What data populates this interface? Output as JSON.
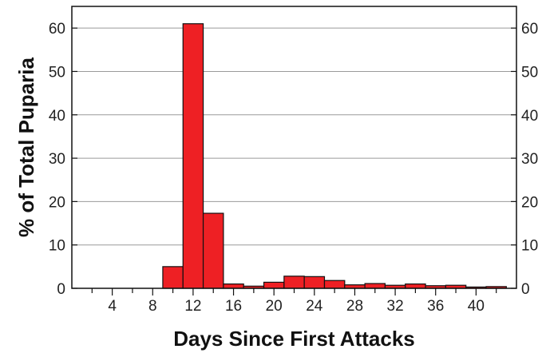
{
  "chart_data": {
    "type": "bar",
    "title": "",
    "xlabel": "Days Since First Attacks",
    "ylabel": "% of Total Puparia",
    "xlim": [
      0,
      44
    ],
    "ylim": [
      0,
      65
    ],
    "grid": true,
    "bar_width_days": 2,
    "bar_color": "#ee2024",
    "x_ticks": [
      4,
      8,
      12,
      16,
      20,
      24,
      28,
      32,
      36,
      40
    ],
    "x_tick_labels": [
      "4",
      "8",
      "12",
      "16",
      "20",
      "24",
      "28",
      "32",
      "36",
      "40"
    ],
    "y_ticks": [
      0,
      10,
      20,
      30,
      40,
      50,
      60
    ],
    "y_tick_labels": [
      "0",
      "10",
      "20",
      "30",
      "40",
      "50",
      "60"
    ],
    "bars": [
      {
        "x": 10,
        "value": 5.0
      },
      {
        "x": 12,
        "value": 61.0
      },
      {
        "x": 14,
        "value": 17.3
      },
      {
        "x": 16,
        "value": 1.0
      },
      {
        "x": 18,
        "value": 0.5
      },
      {
        "x": 20,
        "value": 1.4
      },
      {
        "x": 22,
        "value": 2.8
      },
      {
        "x": 24,
        "value": 2.7
      },
      {
        "x": 26,
        "value": 1.8
      },
      {
        "x": 28,
        "value": 0.8
      },
      {
        "x": 30,
        "value": 1.1
      },
      {
        "x": 32,
        "value": 0.7
      },
      {
        "x": 34,
        "value": 1.0
      },
      {
        "x": 36,
        "value": 0.6
      },
      {
        "x": 38,
        "value": 0.7
      },
      {
        "x": 40,
        "value": 0.3
      },
      {
        "x": 42,
        "value": 0.4
      }
    ]
  }
}
